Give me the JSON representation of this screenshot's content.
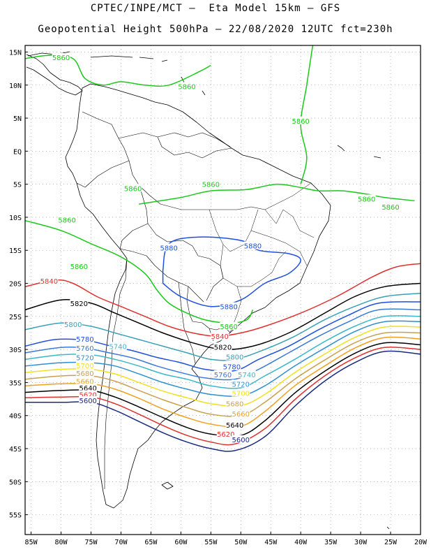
{
  "header": {
    "line1": "CPTEC/INPE/MCT –  Eta Model 15km – GFS",
    "line2": "Geopotential Height 500hPa – 22/08/2020 12UTC fct=230h"
  },
  "map": {
    "lon_range": [
      -86,
      -20
    ],
    "lat_range": [
      -58,
      16
    ],
    "lat_ticks": [
      {
        "label": "15N",
        "lat": 15
      },
      {
        "label": "10N",
        "lat": 10
      },
      {
        "label": "5N",
        "lat": 5
      },
      {
        "label": "EQ",
        "lat": 0
      },
      {
        "label": "5S",
        "lat": -5
      },
      {
        "label": "10S",
        "lat": -10
      },
      {
        "label": "15S",
        "lat": -15
      },
      {
        "label": "20S",
        "lat": -20
      },
      {
        "label": "25S",
        "lat": -25
      },
      {
        "label": "30S",
        "lat": -30
      },
      {
        "label": "35S",
        "lat": -35
      },
      {
        "label": "40S",
        "lat": -40
      },
      {
        "label": "45S",
        "lat": -45
      },
      {
        "label": "50S",
        "lat": -50
      },
      {
        "label": "55S",
        "lat": -55
      }
    ],
    "lon_ticks": [
      {
        "label": "85W",
        "lon": -85
      },
      {
        "label": "80W",
        "lon": -80
      },
      {
        "label": "75W",
        "lon": -75
      },
      {
        "label": "70W",
        "lon": -70
      },
      {
        "label": "65W",
        "lon": -65
      },
      {
        "label": "60W",
        "lon": -60
      },
      {
        "label": "55W",
        "lon": -55
      },
      {
        "label": "50W",
        "lon": -50
      },
      {
        "label": "45W",
        "lon": -45
      },
      {
        "label": "40W",
        "lon": -40
      },
      {
        "label": "35W",
        "lon": -35
      },
      {
        "label": "30W",
        "lon": -30
      },
      {
        "label": "25W",
        "lon": -25
      },
      {
        "label": "20W",
        "lon": -20
      }
    ]
  },
  "contours": [
    {
      "value": "5880",
      "color": "#1f4fe0",
      "points": [
        [
          -63,
          -18
        ],
        [
          -62,
          -14
        ],
        [
          -57,
          -13
        ],
        [
          -50,
          -13.5
        ],
        [
          -47,
          -15
        ],
        [
          -42,
          -15.5
        ],
        [
          -40,
          -16.5
        ],
        [
          -42,
          -18.5
        ],
        [
          -46,
          -20
        ],
        [
          -50,
          -22.5
        ],
        [
          -55,
          -23.5
        ],
        [
          -60,
          -22
        ],
        [
          -63,
          -20
        ]
      ],
      "labels": [
        [
          -62,
          -14.6
        ],
        [
          -48,
          -14.3
        ],
        [
          -52,
          -23.5
        ]
      ]
    },
    {
      "value": "5860",
      "color": "#19c919",
      "points": [
        [
          -86,
          -10.5
        ],
        [
          -80,
          -12
        ],
        [
          -75,
          -14
        ],
        [
          -70,
          -16
        ],
        [
          -66,
          -18.5
        ],
        [
          -64,
          -21
        ],
        [
          -62,
          -23
        ],
        [
          -59,
          -24.5
        ],
        [
          -56,
          -25.5
        ],
        [
          -52,
          -26
        ],
        [
          -49,
          -25.5
        ],
        [
          -48,
          -24
        ]
      ],
      "labels": [
        [
          -77,
          -17.4
        ],
        [
          -79,
          -10.4
        ],
        [
          -52,
          -26.5
        ]
      ]
    },
    {
      "value": "5860",
      "color": "#19c919",
      "points": [
        [
          -67,
          -8
        ],
        [
          -60,
          -7
        ],
        [
          -55,
          -6
        ],
        [
          -49,
          -5.8
        ],
        [
          -44,
          -5
        ],
        [
          -40,
          -5.5
        ],
        [
          -37,
          -6
        ],
        [
          -33,
          -6
        ],
        [
          -29,
          -6.5
        ],
        [
          -26,
          -7
        ],
        [
          -21,
          -7.5
        ]
      ],
      "labels": [
        [
          -68,
          -5.6
        ],
        [
          -55,
          -5
        ],
        [
          -29,
          -7.2
        ],
        [
          -25,
          -8.4
        ]
      ]
    },
    {
      "value": "5860",
      "color": "#19c919",
      "points": [
        [
          -86,
          14
        ],
        [
          -82,
          14.5
        ],
        [
          -78,
          14
        ],
        [
          -76,
          11
        ],
        [
          -73,
          10
        ],
        [
          -70,
          10.5
        ],
        [
          -66,
          10
        ],
        [
          -62,
          10
        ],
        [
          -57,
          12
        ],
        [
          -55,
          13
        ]
      ],
      "labels": [
        [
          -80,
          14.2
        ],
        [
          -59,
          9.8
        ]
      ]
    },
    {
      "value": "5860",
      "color": "#19c919",
      "points": [
        [
          -38,
          16
        ],
        [
          -39,
          10
        ],
        [
          -40,
          4
        ],
        [
          -39,
          -1
        ],
        [
          -40,
          -5
        ]
      ],
      "labels": [
        [
          -40,
          4.6
        ]
      ]
    },
    {
      "value": "5840",
      "color": "#e03030",
      "points": [
        [
          -86,
          -20.5
        ],
        [
          -81,
          -19.5
        ],
        [
          -78,
          -20
        ],
        [
          -74,
          -22
        ],
        [
          -70,
          -23.5
        ],
        [
          -66,
          -25
        ],
        [
          -62,
          -26.5
        ],
        [
          -58,
          -27.5
        ],
        [
          -54,
          -28
        ],
        [
          -50,
          -27.5
        ],
        [
          -46,
          -26.5
        ],
        [
          -40,
          -24.5
        ],
        [
          -34,
          -22
        ],
        [
          -28,
          -19
        ],
        [
          -24,
          -17.5
        ],
        [
          -20,
          -17
        ]
      ],
      "labels": [
        [
          -82,
          -19.6
        ],
        [
          -53.5,
          -28
        ]
      ]
    },
    {
      "value": "5820",
      "color": "#000000",
      "points": [
        [
          -86,
          -24
        ],
        [
          -80,
          -22.5
        ],
        [
          -75,
          -23
        ],
        [
          -71,
          -24.5
        ],
        [
          -67,
          -26
        ],
        [
          -63,
          -27.5
        ],
        [
          -58,
          -29
        ],
        [
          -53,
          -30
        ],
        [
          -48,
          -29.5
        ],
        [
          -42,
          -27.5
        ],
        [
          -36,
          -24.5
        ],
        [
          -31,
          -22
        ],
        [
          -26,
          -20.5
        ],
        [
          -20,
          -20
        ]
      ],
      "labels": [
        [
          -77,
          -23
        ],
        [
          -53,
          -29.6
        ]
      ]
    },
    {
      "value": "5800",
      "color": "#3aa0b8",
      "points": [
        [
          -86,
          -27
        ],
        [
          -80,
          -26
        ],
        [
          -75,
          -26.5
        ],
        [
          -71,
          -27.5
        ],
        [
          -67,
          -28.5
        ],
        [
          -63,
          -29.5
        ],
        [
          -59,
          -30.5
        ],
        [
          -55,
          -31.5
        ],
        [
          -51,
          -31.5
        ],
        [
          -46,
          -30
        ],
        [
          -41,
          -28
        ],
        [
          -36,
          -25.5
        ],
        [
          -31,
          -23.5
        ],
        [
          -26,
          -22
        ],
        [
          -20,
          -21.5
        ]
      ],
      "labels": [
        [
          -78,
          -26.2
        ],
        [
          -51,
          -31.1
        ]
      ]
    },
    {
      "value": "5780",
      "color": "#1f4fe0",
      "points": [
        [
          -86,
          -29.5
        ],
        [
          -81,
          -28.5
        ],
        [
          -76,
          -28.6
        ],
        [
          -72,
          -29.4
        ],
        [
          -68,
          -30.2
        ],
        [
          -64,
          -31.2
        ],
        [
          -60,
          -32
        ],
        [
          -56,
          -33
        ],
        [
          -51,
          -33.2
        ],
        [
          -47,
          -31.5
        ],
        [
          -42,
          -29.5
        ],
        [
          -37,
          -27
        ],
        [
          -32,
          -24.8
        ],
        [
          -27,
          -23
        ],
        [
          -20,
          -22.8
        ]
      ],
      "labels": [
        [
          -76,
          -28.4
        ],
        [
          -51.5,
          -32.6
        ]
      ]
    },
    {
      "value": "5760",
      "color": "#3a7ad8",
      "points": [
        [
          -86,
          -30.5
        ],
        [
          -80,
          -29.7
        ],
        [
          -76,
          -29.8
        ],
        [
          -72,
          -30.5
        ],
        [
          -68,
          -31.3
        ],
        [
          -64,
          -32.5
        ],
        [
          -60,
          -33.5
        ],
        [
          -56,
          -34.3
        ],
        [
          -51,
          -34.5
        ],
        [
          -47,
          -33
        ],
        [
          -42,
          -30.5
        ],
        [
          -37,
          -28
        ],
        [
          -32,
          -25.8
        ],
        [
          -27,
          -24
        ],
        [
          -20,
          -24
        ]
      ],
      "labels": [
        [
          -76,
          -29.8
        ],
        [
          -53,
          -33.8
        ]
      ]
    },
    {
      "value": "5740",
      "color": "#3ab8c8",
      "points": [
        [
          -86,
          -31.5
        ],
        [
          -80,
          -30.8
        ],
        [
          -75,
          -30.8
        ],
        [
          -71,
          -31.5
        ],
        [
          -67,
          -32.5
        ],
        [
          -63,
          -33.7
        ],
        [
          -59,
          -34.5
        ],
        [
          -55,
          -35.5
        ],
        [
          -50,
          -35.8
        ],
        [
          -46,
          -34
        ],
        [
          -41,
          -31.5
        ],
        [
          -36,
          -28.8
        ],
        [
          -31,
          -26.5
        ],
        [
          -26,
          -25
        ],
        [
          -20,
          -25
        ]
      ],
      "labels": [
        [
          -70.5,
          -29.5
        ],
        [
          -49,
          -33.8
        ]
      ]
    },
    {
      "value": "5720",
      "color": "#2f8fd0",
      "points": [
        [
          -86,
          -32.5
        ],
        [
          -80,
          -32
        ],
        [
          -75,
          -32
        ],
        [
          -71,
          -32.5
        ],
        [
          -67,
          -33.7
        ],
        [
          -63,
          -35
        ],
        [
          -59,
          -36
        ],
        [
          -55,
          -36.8
        ],
        [
          -50,
          -37
        ],
        [
          -46,
          -35.5
        ],
        [
          -41,
          -32.5
        ],
        [
          -36,
          -29.8
        ],
        [
          -31,
          -27.3
        ],
        [
          -26,
          -25.8
        ],
        [
          -20,
          -25.8
        ]
      ],
      "labels": [
        [
          -76,
          -31.2
        ],
        [
          -50,
          -35.2
        ]
      ]
    },
    {
      "value": "5700",
      "color": "#f0e020",
      "points": [
        [
          -86,
          -33.5
        ],
        [
          -80,
          -33
        ],
        [
          -75,
          -33
        ],
        [
          -71,
          -33.7
        ],
        [
          -67,
          -35
        ],
        [
          -63,
          -36.3
        ],
        [
          -59,
          -37.3
        ],
        [
          -55,
          -38.2
        ],
        [
          -50,
          -38.5
        ],
        [
          -46,
          -36.8
        ],
        [
          -41,
          -33.5
        ],
        [
          -36,
          -30.7
        ],
        [
          -31,
          -28.2
        ],
        [
          -26,
          -26.6
        ],
        [
          -20,
          -26.6
        ]
      ],
      "labels": [
        [
          -76,
          -32.4
        ],
        [
          -50,
          -36.6
        ]
      ]
    },
    {
      "value": "5680",
      "color": "#c8a050",
      "points": [
        [
          -86,
          -34.5
        ],
        [
          -80,
          -34
        ],
        [
          -75,
          -34
        ],
        [
          -71,
          -34.8
        ],
        [
          -67,
          -36.2
        ],
        [
          -63,
          -37.6
        ],
        [
          -59,
          -38.8
        ],
        [
          -55,
          -39.8
        ],
        [
          -50,
          -40
        ],
        [
          -46,
          -38
        ],
        [
          -41,
          -34.5
        ],
        [
          -36,
          -31.6
        ],
        [
          -31,
          -29
        ],
        [
          -26,
          -27.5
        ],
        [
          -20,
          -27.5
        ]
      ],
      "labels": [
        [
          -76,
          -33.6
        ],
        [
          -51,
          -38.2
        ]
      ]
    },
    {
      "value": "5660",
      "color": "#f0a020",
      "points": [
        [
          -86,
          -35.5
        ],
        [
          -80,
          -35.2
        ],
        [
          -75,
          -35.2
        ],
        [
          -71,
          -36
        ],
        [
          -67,
          -37.4
        ],
        [
          -63,
          -39
        ],
        [
          -59,
          -40.3
        ],
        [
          -55,
          -41.3
        ],
        [
          -50,
          -41.6
        ],
        [
          -46,
          -39.4
        ],
        [
          -41,
          -35.5
        ],
        [
          -36,
          -32.5
        ],
        [
          -31,
          -29.8
        ],
        [
          -26,
          -28.2
        ],
        [
          -20,
          -28.4
        ]
      ],
      "labels": [
        [
          -76,
          -34.8
        ],
        [
          -50,
          -39.7
        ]
      ]
    },
    {
      "value": "5640",
      "color": "#000000",
      "points": [
        [
          -86,
          -36.5
        ],
        [
          -80,
          -36.2
        ],
        [
          -75,
          -36.2
        ],
        [
          -71,
          -37.2
        ],
        [
          -67,
          -38.7
        ],
        [
          -63,
          -40.3
        ],
        [
          -59,
          -41.8
        ],
        [
          -55,
          -42.8
        ],
        [
          -50,
          -43
        ],
        [
          -46,
          -40.8
        ],
        [
          -41,
          -36.6
        ],
        [
          -36,
          -33.3
        ],
        [
          -31,
          -30.6
        ],
        [
          -26,
          -29
        ],
        [
          -20,
          -29.3
        ]
      ],
      "labels": [
        [
          -75.5,
          -35.8
        ],
        [
          -51,
          -41.4
        ]
      ]
    },
    {
      "value": "5620",
      "color": "#e03030",
      "points": [
        [
          -86,
          -37.3
        ],
        [
          -80,
          -37.2
        ],
        [
          -75,
          -37.2
        ],
        [
          -71,
          -38.2
        ],
        [
          -67,
          -39.8
        ],
        [
          -63,
          -41.5
        ],
        [
          -59,
          -43
        ],
        [
          -55,
          -44
        ],
        [
          -51,
          -44.3
        ],
        [
          -46,
          -42
        ],
        [
          -41,
          -37.6
        ],
        [
          -36,
          -34
        ],
        [
          -31,
          -31.3
        ],
        [
          -26,
          -29.7
        ],
        [
          -20,
          -30
        ]
      ],
      "labels": [
        [
          -75.5,
          -36.8
        ],
        [
          -52.5,
          -42.8
        ]
      ]
    },
    {
      "value": "5600",
      "color": "#1a2a80",
      "points": [
        [
          -86,
          -38
        ],
        [
          -80,
          -38
        ],
        [
          -75,
          -38
        ],
        [
          -71,
          -39.2
        ],
        [
          -67,
          -40.9
        ],
        [
          -63,
          -42.6
        ],
        [
          -59,
          -44
        ],
        [
          -55,
          -45
        ],
        [
          -51,
          -45.3
        ],
        [
          -46,
          -43.2
        ],
        [
          -41,
          -38.6
        ],
        [
          -36,
          -34.8
        ],
        [
          -31,
          -32
        ],
        [
          -26,
          -30.3
        ],
        [
          -20,
          -30.7
        ]
      ],
      "labels": [
        [
          -75.5,
          -37.7
        ],
        [
          -50,
          -43.6
        ]
      ]
    }
  ]
}
